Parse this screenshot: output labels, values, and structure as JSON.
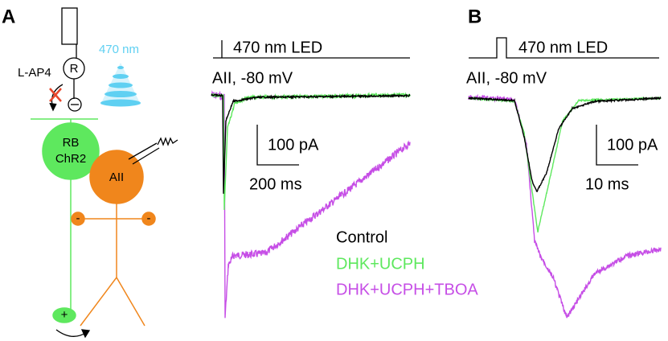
{
  "panels": [
    {
      "label": "A",
      "diagram": {
        "drug": "L-AP4",
        "receptor": "R",
        "wavelength": "470 nm",
        "cell_rb": "RB",
        "cell_chr2": "ChR2",
        "cell_aii": "AII",
        "minus": "-",
        "plus": "+"
      },
      "stimulus": "470 nm LED",
      "recording": "AII, -80 mV",
      "scale_y": "100 pA",
      "scale_x": "200 ms"
    },
    {
      "label": "B",
      "stimulus": "470 nm LED",
      "recording": "AII, -80 mV",
      "scale_y": "100 pA",
      "scale_x": "10 ms"
    }
  ],
  "legend": [
    {
      "name": "Control",
      "color": "#000000"
    },
    {
      "name": "DHK+UCPH",
      "color": "#5ee85e"
    },
    {
      "name": "DHK+UCPH+TBOA",
      "color": "#c64ee6"
    }
  ]
}
